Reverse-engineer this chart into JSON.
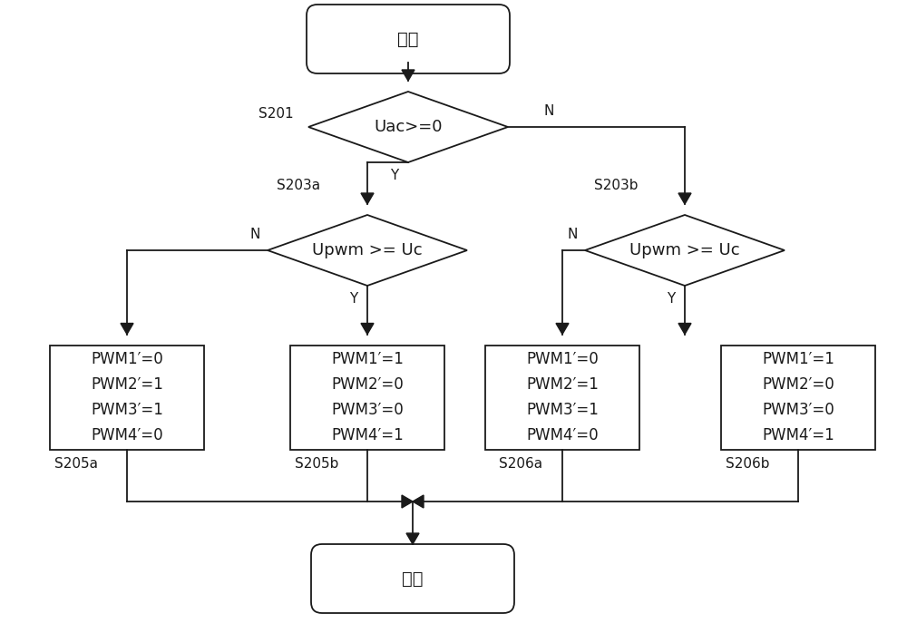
{
  "bg_color": "#ffffff",
  "line_color": "#1a1a1a",
  "text_color": "#1a1a1a",
  "font_size": 14,
  "font_size_small": 11,
  "title": "开始",
  "end_text": "结束",
  "diamond1_text": "Uac>=0",
  "diamond2a_text": "Upwm >= Uc",
  "diamond2b_text": "Upwm >= Uc",
  "box_s205a": "PWM1′=0\nPWM2′=1\nPWM3′=1\nPWM4′=0",
  "box_s205b": "PWM1′=1\nPWM2′=0\nPWM3′=0\nPWM4′=1",
  "box_s206a": "PWM1′=0\nPWM2′=1\nPWM3′=1\nPWM4′=0",
  "box_s206b": "PWM1′=1\nPWM2′=0\nPWM3′=0\nPWM4′=1",
  "label_s201": "S201",
  "label_s203a": "S203a",
  "label_s203b": "S203b",
  "label_s205a": "S205a",
  "label_s205b": "S205b",
  "label_s206a": "S206a",
  "label_s206b": "S206b"
}
